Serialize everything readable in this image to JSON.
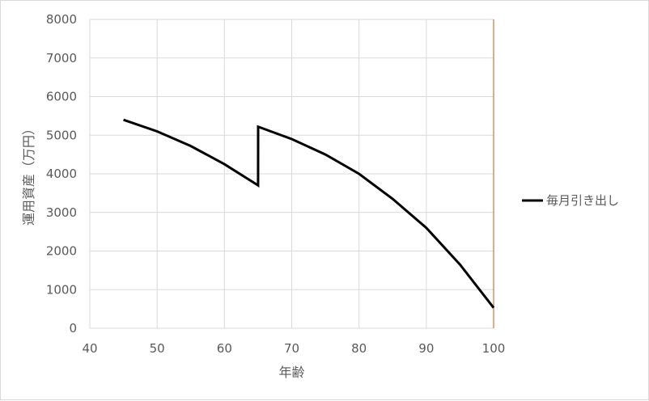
{
  "chart_data": {
    "type": "line",
    "xlabel": "年齢",
    "ylabel": "運用資産（万円）",
    "xlim": [
      40,
      100
    ],
    "ylim": [
      0,
      8000
    ],
    "x_ticks": [
      "40",
      "50",
      "60",
      "70",
      "80",
      "90",
      "100"
    ],
    "y_ticks": [
      "0",
      "1000",
      "2000",
      "3000",
      "4000",
      "5000",
      "6000",
      "7000",
      "8000"
    ],
    "grid": true,
    "legend_position": "right",
    "series": [
      {
        "name": "毎月引き出し",
        "color": "#000000",
        "x": [
          45,
          50,
          55,
          60,
          65,
          65.01,
          70,
          75,
          80,
          85,
          90,
          95,
          100
        ],
        "y": [
          5400,
          5100,
          4720,
          4250,
          3700,
          5220,
          4900,
          4500,
          4000,
          3350,
          2600,
          1650,
          530
        ]
      }
    ],
    "colors": {
      "grid": "#d9d9d9",
      "xmax_line": "#c55a11",
      "text": "#595959"
    }
  }
}
